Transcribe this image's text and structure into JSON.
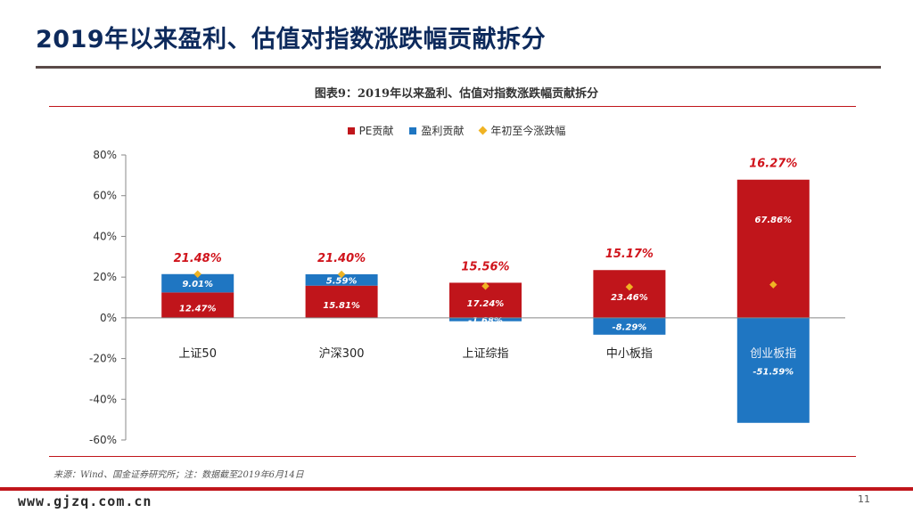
{
  "slide": {
    "title": "2019年以来盈利、估值对指数涨跌幅贡献拆分",
    "caption": "图表9：2019年以来盈利、估值对指数涨跌幅贡献拆分",
    "source": "来源：Wind、国金证券研究所；注：数据截至2019年6月14日",
    "watermark": "www.gjzq.com.cn",
    "page_number": "11"
  },
  "colors": {
    "pe": "#c0151b",
    "earnings": "#1f76c2",
    "return_marker": "#f0b323",
    "label_red": "#d0141c",
    "title_navy": "#0d2a5c"
  },
  "chart_data": {
    "type": "bar",
    "stacked": true,
    "categories": [
      "上证50",
      "沪深300",
      "上证综指",
      "中小板指",
      "创业板指"
    ],
    "series": [
      {
        "name": "PE贡献",
        "values": [
          12.47,
          15.81,
          17.24,
          23.46,
          67.86
        ]
      },
      {
        "name": "盈利贡献",
        "values": [
          9.01,
          5.59,
          -1.68,
          -8.29,
          -51.59
        ]
      }
    ],
    "markers": {
      "name": "年初至今涨跌幅",
      "values": [
        21.48,
        21.4,
        15.56,
        15.17,
        16.27
      ]
    },
    "value_labels": {
      "pe": [
        "12.47%",
        "15.81%",
        "17.24%",
        "23.46%",
        "67.86%"
      ],
      "earnings": [
        "9.01%",
        "5.59%",
        "-1.68%",
        "-8.29%",
        "-51.59%"
      ],
      "total": [
        "21.48%",
        "21.40%",
        "15.56%",
        "15.17%",
        "16.27%"
      ]
    },
    "ylim": [
      -60,
      80
    ],
    "yticks": [
      80,
      60,
      40,
      20,
      0,
      -20,
      -40,
      -60
    ],
    "ytick_labels": [
      "80%",
      "60%",
      "40%",
      "20%",
      "0%",
      "-20%",
      "-40%",
      "-60%"
    ],
    "legend": [
      "PE贡献",
      "盈利贡献",
      "年初至今涨跌幅"
    ],
    "legend_position": "top-center",
    "grid": false
  }
}
